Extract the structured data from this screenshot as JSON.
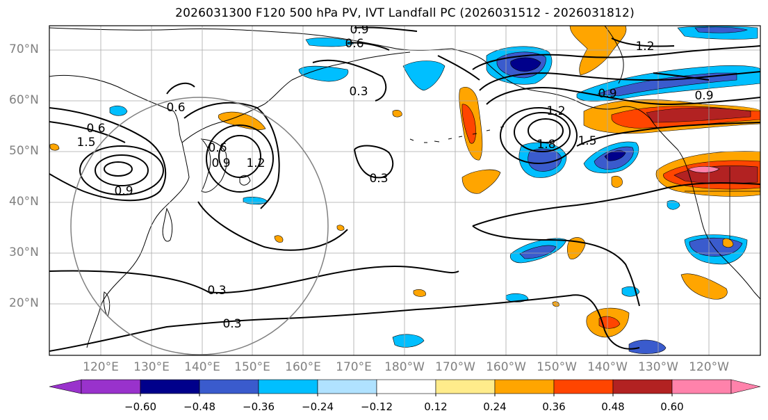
{
  "title": "2026031300 F120 500 hPa PV, IVT Landfall PC (2026031512 - 2026031812)",
  "lat_labels": [
    "70°N",
    "60°N",
    "50°N",
    "40°N",
    "30°N",
    "20°N"
  ],
  "lon_labels": [
    "120°E",
    "130°E",
    "140°E",
    "150°E",
    "160°E",
    "170°E",
    "180°W",
    "170°W",
    "160°W",
    "150°W",
    "140°W",
    "130°W",
    "120°W"
  ],
  "colorbar": {
    "labels": [
      "−0.60",
      "−0.48",
      "−0.36",
      "−0.24",
      "−0.12",
      "0.12",
      "0.24",
      "0.36",
      "0.48",
      "0.60"
    ],
    "colors": [
      "#9932cc",
      "#00008b",
      "#3a5bcd",
      "#00bfff",
      "#b0e2ff",
      "#ffffff",
      "#ffec8b",
      "#ffa500",
      "#ff4500",
      "#b22222",
      "#ff82ab"
    ]
  },
  "contour_labels": [
    "0.9",
    "0.6",
    "0.6",
    "0.3",
    "1.2",
    "0.9",
    "0.9",
    "1.2",
    "1.8",
    "1.5",
    "0.6",
    "1.5",
    "0.9",
    "0.6",
    "0.9",
    "1.2",
    "0.3",
    "0.3",
    "0.3"
  ]
}
